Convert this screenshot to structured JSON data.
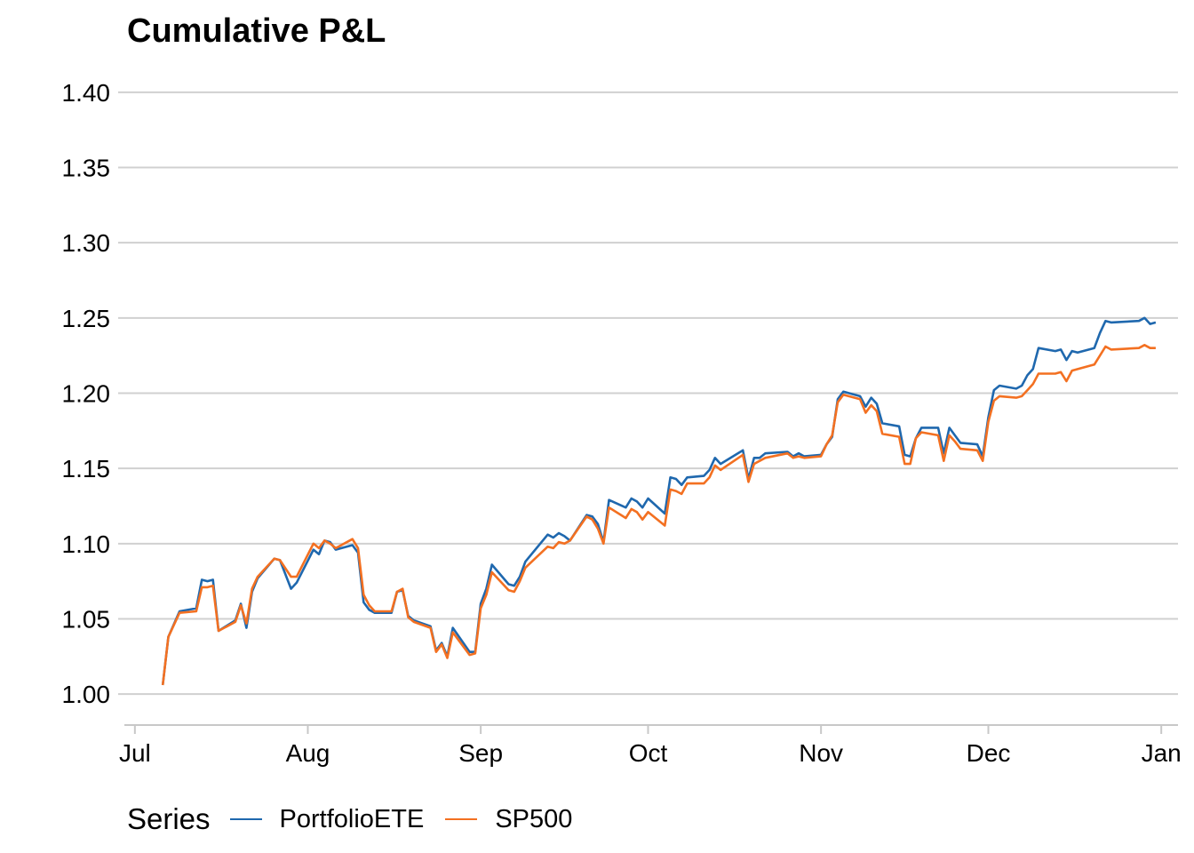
{
  "colors": {
    "PortfolioETE": "#1f68ae",
    "SP500": "#f37021",
    "grid": "#d0d0d0",
    "axis": "#c8c8c8"
  },
  "legend": {
    "title": "Series"
  },
  "chart_data": {
    "type": "line",
    "title": "Cumulative P&L",
    "xlabel": "",
    "ylabel": "",
    "x_range": [
      "2020-06-28",
      "2021-01-04"
    ],
    "ylim": [
      0.98,
      1.42
    ],
    "yticks": [
      {
        "value": 1.0,
        "label": "1.00"
      },
      {
        "value": 1.05,
        "label": "1.05"
      },
      {
        "value": 1.1,
        "label": "1.10"
      },
      {
        "value": 1.15,
        "label": "1.15"
      },
      {
        "value": 1.2,
        "label": "1.20"
      },
      {
        "value": 1.25,
        "label": "1.25"
      },
      {
        "value": 1.3,
        "label": "1.30"
      },
      {
        "value": 1.35,
        "label": "1.35"
      },
      {
        "value": 1.4,
        "label": "1.40"
      }
    ],
    "xticks": [
      {
        "date": "2020-07-01",
        "label": "Jul"
      },
      {
        "date": "2020-08-01",
        "label": "Aug"
      },
      {
        "date": "2020-09-01",
        "label": "Sep"
      },
      {
        "date": "2020-10-01",
        "label": "Oct"
      },
      {
        "date": "2020-11-01",
        "label": "Nov"
      },
      {
        "date": "2020-12-01",
        "label": "Dec"
      },
      {
        "date": "2021-01-01",
        "label": "Jan"
      }
    ],
    "grid": true,
    "legend_position": "bottom-left",
    "series": [
      {
        "name": "PortfolioETE",
        "points": [
          [
            "2020-07-06",
            1.006
          ],
          [
            "2020-07-07",
            1.038
          ],
          [
            "2020-07-09",
            1.055
          ],
          [
            "2020-07-12",
            1.057
          ],
          [
            "2020-07-13",
            1.076
          ],
          [
            "2020-07-14",
            1.075
          ],
          [
            "2020-07-15",
            1.076
          ],
          [
            "2020-07-16",
            1.042
          ],
          [
            "2020-07-19",
            1.049
          ],
          [
            "2020-07-20",
            1.06
          ],
          [
            "2020-07-21",
            1.044
          ],
          [
            "2020-07-22",
            1.068
          ],
          [
            "2020-07-23",
            1.077
          ],
          [
            "2020-07-26",
            1.09
          ],
          [
            "2020-07-27",
            1.089
          ],
          [
            "2020-07-29",
            1.07
          ],
          [
            "2020-07-30",
            1.074
          ],
          [
            "2020-08-02",
            1.096
          ],
          [
            "2020-08-03",
            1.093
          ],
          [
            "2020-08-04",
            1.102
          ],
          [
            "2020-08-05",
            1.101
          ],
          [
            "2020-08-06",
            1.096
          ],
          [
            "2020-08-09",
            1.099
          ],
          [
            "2020-08-10",
            1.094
          ],
          [
            "2020-08-11",
            1.061
          ],
          [
            "2020-08-12",
            1.056
          ],
          [
            "2020-08-13",
            1.054
          ],
          [
            "2020-08-16",
            1.054
          ],
          [
            "2020-08-17",
            1.068
          ],
          [
            "2020-08-18",
            1.069
          ],
          [
            "2020-08-19",
            1.052
          ],
          [
            "2020-08-20",
            1.049
          ],
          [
            "2020-08-23",
            1.045
          ],
          [
            "2020-08-24",
            1.029
          ],
          [
            "2020-08-25",
            1.034
          ],
          [
            "2020-08-26",
            1.025
          ],
          [
            "2020-08-27",
            1.044
          ],
          [
            "2020-08-30",
            1.028
          ],
          [
            "2020-08-31",
            1.028
          ],
          [
            "2020-09-01",
            1.06
          ],
          [
            "2020-09-02",
            1.07
          ],
          [
            "2020-09-03",
            1.086
          ],
          [
            "2020-09-06",
            1.073
          ],
          [
            "2020-09-07",
            1.072
          ],
          [
            "2020-09-08",
            1.078
          ],
          [
            "2020-09-09",
            1.088
          ],
          [
            "2020-09-13",
            1.106
          ],
          [
            "2020-09-14",
            1.104
          ],
          [
            "2020-09-15",
            1.107
          ],
          [
            "2020-09-16",
            1.105
          ],
          [
            "2020-09-17",
            1.102
          ],
          [
            "2020-09-20",
            1.119
          ],
          [
            "2020-09-21",
            1.118
          ],
          [
            "2020-09-22",
            1.113
          ],
          [
            "2020-09-23",
            1.101
          ],
          [
            "2020-09-24",
            1.129
          ],
          [
            "2020-09-27",
            1.124
          ],
          [
            "2020-09-28",
            1.13
          ],
          [
            "2020-09-29",
            1.128
          ],
          [
            "2020-09-30",
            1.124
          ],
          [
            "2020-10-01",
            1.13
          ],
          [
            "2020-10-04",
            1.12
          ],
          [
            "2020-10-05",
            1.144
          ],
          [
            "2020-10-06",
            1.143
          ],
          [
            "2020-10-07",
            1.139
          ],
          [
            "2020-10-08",
            1.144
          ],
          [
            "2020-10-11",
            1.145
          ],
          [
            "2020-10-12",
            1.149
          ],
          [
            "2020-10-13",
            1.157
          ],
          [
            "2020-10-14",
            1.153
          ],
          [
            "2020-10-18",
            1.162
          ],
          [
            "2020-10-19",
            1.143
          ],
          [
            "2020-10-20",
            1.157
          ],
          [
            "2020-10-21",
            1.157
          ],
          [
            "2020-10-22",
            1.16
          ],
          [
            "2020-10-26",
            1.161
          ],
          [
            "2020-10-27",
            1.158
          ],
          [
            "2020-10-28",
            1.16
          ],
          [
            "2020-10-29",
            1.158
          ],
          [
            "2020-11-01",
            1.159
          ],
          [
            "2020-11-02",
            1.166
          ],
          [
            "2020-11-03",
            1.171
          ],
          [
            "2020-11-04",
            1.196
          ],
          [
            "2020-11-05",
            1.201
          ],
          [
            "2020-11-08",
            1.198
          ],
          [
            "2020-11-09",
            1.191
          ],
          [
            "2020-11-10",
            1.197
          ],
          [
            "2020-11-11",
            1.193
          ],
          [
            "2020-11-12",
            1.18
          ],
          [
            "2020-11-15",
            1.178
          ],
          [
            "2020-11-16",
            1.159
          ],
          [
            "2020-11-17",
            1.158
          ],
          [
            "2020-11-18",
            1.17
          ],
          [
            "2020-11-19",
            1.177
          ],
          [
            "2020-11-22",
            1.177
          ],
          [
            "2020-11-23",
            1.16
          ],
          [
            "2020-11-24",
            1.177
          ],
          [
            "2020-11-25",
            1.172
          ],
          [
            "2020-11-26",
            1.167
          ],
          [
            "2020-11-29",
            1.166
          ],
          [
            "2020-11-30",
            1.158
          ],
          [
            "2020-12-01",
            1.184
          ],
          [
            "2020-12-02",
            1.202
          ],
          [
            "2020-12-03",
            1.205
          ],
          [
            "2020-12-06",
            1.203
          ],
          [
            "2020-12-07",
            1.205
          ],
          [
            "2020-12-08",
            1.212
          ],
          [
            "2020-12-09",
            1.216
          ],
          [
            "2020-12-10",
            1.23
          ],
          [
            "2020-12-13",
            1.228
          ],
          [
            "2020-12-14",
            1.229
          ],
          [
            "2020-12-15",
            1.222
          ],
          [
            "2020-12-16",
            1.228
          ],
          [
            "2020-12-17",
            1.227
          ],
          [
            "2020-12-20",
            1.23
          ],
          [
            "2020-12-21",
            1.24
          ],
          [
            "2020-12-22",
            1.248
          ],
          [
            "2020-12-23",
            1.247
          ],
          [
            "2020-12-28",
            1.248
          ],
          [
            "2020-12-29",
            1.25
          ],
          [
            "2020-12-30",
            1.246
          ],
          [
            "2020-12-31",
            1.247
          ]
        ]
      },
      {
        "name": "SP500",
        "points": [
          [
            "2020-07-06",
            1.006
          ],
          [
            "2020-07-07",
            1.038
          ],
          [
            "2020-07-09",
            1.054
          ],
          [
            "2020-07-12",
            1.055
          ],
          [
            "2020-07-13",
            1.071
          ],
          [
            "2020-07-14",
            1.071
          ],
          [
            "2020-07-15",
            1.072
          ],
          [
            "2020-07-16",
            1.042
          ],
          [
            "2020-07-19",
            1.048
          ],
          [
            "2020-07-20",
            1.059
          ],
          [
            "2020-07-21",
            1.047
          ],
          [
            "2020-07-22",
            1.07
          ],
          [
            "2020-07-23",
            1.078
          ],
          [
            "2020-07-26",
            1.09
          ],
          [
            "2020-07-27",
            1.089
          ],
          [
            "2020-07-29",
            1.078
          ],
          [
            "2020-07-30",
            1.078
          ],
          [
            "2020-08-02",
            1.1
          ],
          [
            "2020-08-03",
            1.097
          ],
          [
            "2020-08-04",
            1.102
          ],
          [
            "2020-08-05",
            1.1
          ],
          [
            "2020-08-06",
            1.097
          ],
          [
            "2020-08-09",
            1.103
          ],
          [
            "2020-08-10",
            1.097
          ],
          [
            "2020-08-11",
            1.066
          ],
          [
            "2020-08-12",
            1.059
          ],
          [
            "2020-08-13",
            1.055
          ],
          [
            "2020-08-16",
            1.055
          ],
          [
            "2020-08-17",
            1.068
          ],
          [
            "2020-08-18",
            1.07
          ],
          [
            "2020-08-19",
            1.051
          ],
          [
            "2020-08-20",
            1.048
          ],
          [
            "2020-08-23",
            1.044
          ],
          [
            "2020-08-24",
            1.028
          ],
          [
            "2020-08-25",
            1.033
          ],
          [
            "2020-08-26",
            1.024
          ],
          [
            "2020-08-27",
            1.041
          ],
          [
            "2020-08-30",
            1.026
          ],
          [
            "2020-08-31",
            1.027
          ],
          [
            "2020-09-01",
            1.057
          ],
          [
            "2020-09-02",
            1.066
          ],
          [
            "2020-09-03",
            1.081
          ],
          [
            "2020-09-06",
            1.069
          ],
          [
            "2020-09-07",
            1.068
          ],
          [
            "2020-09-08",
            1.075
          ],
          [
            "2020-09-09",
            1.084
          ],
          [
            "2020-09-13",
            1.098
          ],
          [
            "2020-09-14",
            1.097
          ],
          [
            "2020-09-15",
            1.101
          ],
          [
            "2020-09-16",
            1.1
          ],
          [
            "2020-09-17",
            1.102
          ],
          [
            "2020-09-20",
            1.118
          ],
          [
            "2020-09-21",
            1.116
          ],
          [
            "2020-09-22",
            1.11
          ],
          [
            "2020-09-23",
            1.1
          ],
          [
            "2020-09-24",
            1.124
          ],
          [
            "2020-09-27",
            1.117
          ],
          [
            "2020-09-28",
            1.123
          ],
          [
            "2020-09-29",
            1.121
          ],
          [
            "2020-09-30",
            1.116
          ],
          [
            "2020-10-01",
            1.121
          ],
          [
            "2020-10-04",
            1.112
          ],
          [
            "2020-10-05",
            1.136
          ],
          [
            "2020-10-06",
            1.135
          ],
          [
            "2020-10-07",
            1.133
          ],
          [
            "2020-10-08",
            1.14
          ],
          [
            "2020-10-11",
            1.14
          ],
          [
            "2020-10-12",
            1.144
          ],
          [
            "2020-10-13",
            1.152
          ],
          [
            "2020-10-14",
            1.149
          ],
          [
            "2020-10-18",
            1.159
          ],
          [
            "2020-10-19",
            1.141
          ],
          [
            "2020-10-20",
            1.153
          ],
          [
            "2020-10-21",
            1.155
          ],
          [
            "2020-10-22",
            1.157
          ],
          [
            "2020-10-26",
            1.16
          ],
          [
            "2020-10-27",
            1.157
          ],
          [
            "2020-10-28",
            1.158
          ],
          [
            "2020-10-29",
            1.157
          ],
          [
            "2020-11-01",
            1.158
          ],
          [
            "2020-11-02",
            1.166
          ],
          [
            "2020-11-03",
            1.172
          ],
          [
            "2020-11-04",
            1.194
          ],
          [
            "2020-11-05",
            1.199
          ],
          [
            "2020-11-08",
            1.196
          ],
          [
            "2020-11-09",
            1.187
          ],
          [
            "2020-11-10",
            1.192
          ],
          [
            "2020-11-11",
            1.188
          ],
          [
            "2020-11-12",
            1.173
          ],
          [
            "2020-11-15",
            1.171
          ],
          [
            "2020-11-16",
            1.153
          ],
          [
            "2020-11-17",
            1.153
          ],
          [
            "2020-11-18",
            1.17
          ],
          [
            "2020-11-19",
            1.174
          ],
          [
            "2020-11-22",
            1.172
          ],
          [
            "2020-11-23",
            1.155
          ],
          [
            "2020-11-24",
            1.172
          ],
          [
            "2020-11-25",
            1.168
          ],
          [
            "2020-11-26",
            1.163
          ],
          [
            "2020-11-29",
            1.162
          ],
          [
            "2020-11-30",
            1.155
          ],
          [
            "2020-12-01",
            1.181
          ],
          [
            "2020-12-02",
            1.195
          ],
          [
            "2020-12-03",
            1.198
          ],
          [
            "2020-12-06",
            1.197
          ],
          [
            "2020-12-07",
            1.198
          ],
          [
            "2020-12-08",
            1.202
          ],
          [
            "2020-12-09",
            1.206
          ],
          [
            "2020-12-10",
            1.213
          ],
          [
            "2020-12-13",
            1.213
          ],
          [
            "2020-12-14",
            1.214
          ],
          [
            "2020-12-15",
            1.208
          ],
          [
            "2020-12-16",
            1.215
          ],
          [
            "2020-12-17",
            1.216
          ],
          [
            "2020-12-20",
            1.219
          ],
          [
            "2020-12-21",
            1.225
          ],
          [
            "2020-12-22",
            1.231
          ],
          [
            "2020-12-23",
            1.229
          ],
          [
            "2020-12-28",
            1.23
          ],
          [
            "2020-12-29",
            1.232
          ],
          [
            "2020-12-30",
            1.23
          ],
          [
            "2020-12-31",
            1.23
          ]
        ]
      }
    ]
  }
}
